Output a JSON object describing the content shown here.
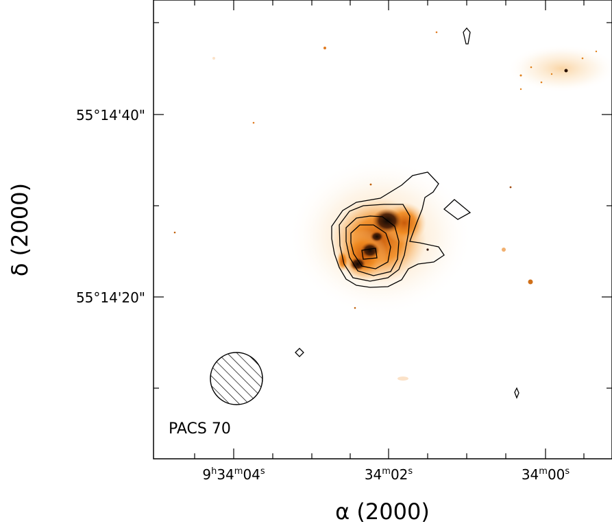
{
  "chart_data": {
    "type": "image",
    "xlabel": "α (2000)",
    "ylabel": "δ (2000)",
    "x_ticks": [
      {
        "value": "9h34m04s",
        "parts": [
          "9",
          "h",
          "34",
          "m",
          "04",
          "s"
        ]
      },
      {
        "value": "34m02s",
        "parts": [
          "",
          "",
          "34",
          "m",
          "02",
          "s"
        ]
      },
      {
        "value": "34m00s",
        "parts": [
          "",
          "",
          "34",
          "m",
          "00",
          "s"
        ]
      }
    ],
    "y_ticks": [
      "55°14'40\"",
      "55°14'20\""
    ],
    "beam_label": "PACS 70",
    "colormap": "white-orange-black",
    "contours": {
      "levels_drawn": 5,
      "color": "#000000"
    },
    "colors": {
      "frame": "#000000",
      "emission_mid": "#f39b22",
      "emission_peak": "#1a0d05"
    }
  }
}
